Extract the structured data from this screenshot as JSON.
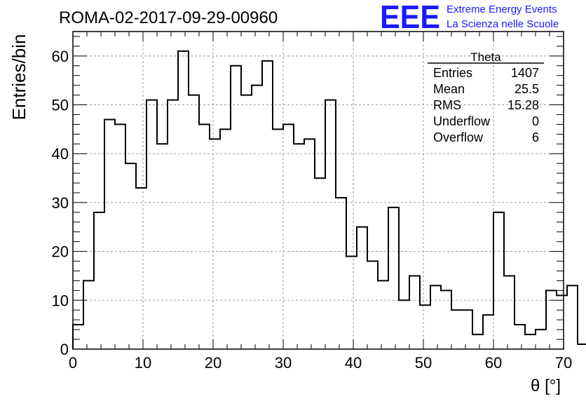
{
  "header": {
    "run_title": "ROMA-02-2017-09-29-00960",
    "logo_text": "EEE",
    "project_line1": "Extreme Energy Events",
    "project_line2": "La Scienza nelle Scuole"
  },
  "colors": {
    "logo": "#1a1aff",
    "histogram": "#000000",
    "grid": "#999999"
  },
  "stats_box": {
    "title": "Theta",
    "rows": [
      {
        "label": "Entries",
        "value": "1407"
      },
      {
        "label": "Mean",
        "value": "25.5"
      },
      {
        "label": "RMS",
        "value": "15.28"
      },
      {
        "label": "Underflow",
        "value": "0"
      },
      {
        "label": "Overflow",
        "value": "6"
      }
    ]
  },
  "chart_data": {
    "type": "bar",
    "style": "step-histogram",
    "xlabel": "θ [°]",
    "ylabel": "Entries/bin",
    "xlim": [
      0,
      70
    ],
    "ylim": [
      0,
      65
    ],
    "grid": true,
    "bin_width": 1.5,
    "x_ticks": [
      0,
      10,
      20,
      30,
      40,
      50,
      60,
      70
    ],
    "y_ticks": [
      0,
      10,
      20,
      30,
      40,
      50,
      60
    ],
    "values": [
      5,
      14,
      28,
      47,
      46,
      38,
      33,
      51,
      42,
      51,
      61,
      52,
      46,
      43,
      45,
      58,
      52,
      54,
      59,
      45,
      46,
      42,
      43,
      35,
      51,
      31,
      19,
      25,
      18,
      14,
      29,
      10,
      15,
      9,
      13,
      12,
      8,
      8,
      3,
      7,
      28,
      15,
      5,
      3,
      4,
      12,
      11,
      13,
      1
    ]
  }
}
